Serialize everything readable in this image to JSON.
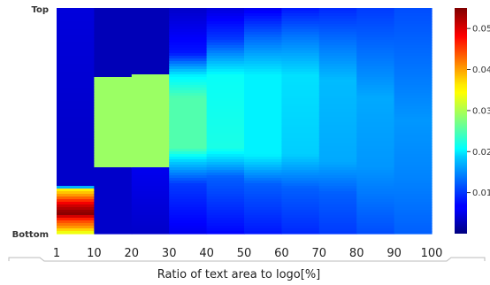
{
  "chart_data": {
    "type": "heatmap",
    "xlabel": "Ratio of text area to logo[%]",
    "x_tick_labels": [
      "1",
      "10",
      "20",
      "30",
      "40",
      "50",
      "60",
      "70",
      "80",
      "90",
      "100"
    ],
    "y_tick_labels": [
      "Top",
      "Bottom"
    ],
    "colormap": "jet",
    "colorbar": {
      "min": 0.0,
      "max": 0.055,
      "tick_values": [
        0.01,
        0.02,
        0.03,
        0.04,
        0.05
      ],
      "tick_labels": [
        "0.01",
        "0.02",
        "0.03",
        "0.04",
        "0.05"
      ]
    },
    "columns": [
      {
        "range": "1-10",
        "stops": [
          [
            0,
            0.005
          ],
          [
            0.6,
            0.004
          ],
          [
            0.79,
            0.004
          ],
          [
            0.8,
            0.034
          ],
          [
            0.83,
            0.04
          ],
          [
            0.87,
            0.05
          ],
          [
            0.91,
            0.055
          ],
          [
            0.94,
            0.045
          ],
          [
            0.97,
            0.04
          ],
          [
            1.0,
            0.032
          ]
        ]
      },
      {
        "range": "10-20",
        "stops": [
          [
            0,
            0.003
          ],
          [
            0.3,
            0.003
          ],
          [
            0.31,
            0.029
          ],
          [
            0.7,
            0.029
          ],
          [
            0.71,
            0.004
          ],
          [
            1.0,
            0.004
          ]
        ]
      },
      {
        "range": "20-30",
        "stops": [
          [
            0,
            0.003
          ],
          [
            0.29,
            0.003
          ],
          [
            0.3,
            0.029
          ],
          [
            0.7,
            0.029
          ],
          [
            0.71,
            0.006
          ],
          [
            1.0,
            0.004
          ]
        ]
      },
      {
        "range": "30-40",
        "stops": [
          [
            0,
            0.004
          ],
          [
            0.2,
            0.008
          ],
          [
            0.3,
            0.02
          ],
          [
            0.4,
            0.025
          ],
          [
            0.62,
            0.025
          ],
          [
            0.68,
            0.018
          ],
          [
            0.78,
            0.01
          ],
          [
            1.0,
            0.006
          ]
        ]
      },
      {
        "range": "40-50",
        "stops": [
          [
            0,
            0.005
          ],
          [
            0.14,
            0.01
          ],
          [
            0.3,
            0.021
          ],
          [
            0.62,
            0.022
          ],
          [
            0.75,
            0.012
          ],
          [
            1.0,
            0.007
          ]
        ]
      },
      {
        "range": "50-60",
        "stops": [
          [
            0,
            0.006
          ],
          [
            0.12,
            0.012
          ],
          [
            0.3,
            0.02
          ],
          [
            0.65,
            0.02
          ],
          [
            0.78,
            0.012
          ],
          [
            1.0,
            0.008
          ]
        ]
      },
      {
        "range": "60-70",
        "stops": [
          [
            0,
            0.008
          ],
          [
            0.12,
            0.013
          ],
          [
            0.3,
            0.019
          ],
          [
            0.65,
            0.018
          ],
          [
            0.8,
            0.012
          ],
          [
            1.0,
            0.009
          ]
        ]
      },
      {
        "range": "70-80",
        "stops": [
          [
            0,
            0.009
          ],
          [
            0.15,
            0.013
          ],
          [
            0.32,
            0.017
          ],
          [
            0.68,
            0.016
          ],
          [
            0.82,
            0.012
          ],
          [
            1.0,
            0.01
          ]
        ]
      },
      {
        "range": "80-90",
        "stops": [
          [
            0,
            0.01
          ],
          [
            0.2,
            0.013
          ],
          [
            0.4,
            0.016
          ],
          [
            0.7,
            0.015
          ],
          [
            1.0,
            0.011
          ]
        ]
      },
      {
        "range": "90-100",
        "stops": [
          [
            0,
            0.011
          ],
          [
            0.25,
            0.013
          ],
          [
            0.5,
            0.015
          ],
          [
            0.75,
            0.014
          ],
          [
            1.0,
            0.012
          ]
        ]
      }
    ]
  }
}
